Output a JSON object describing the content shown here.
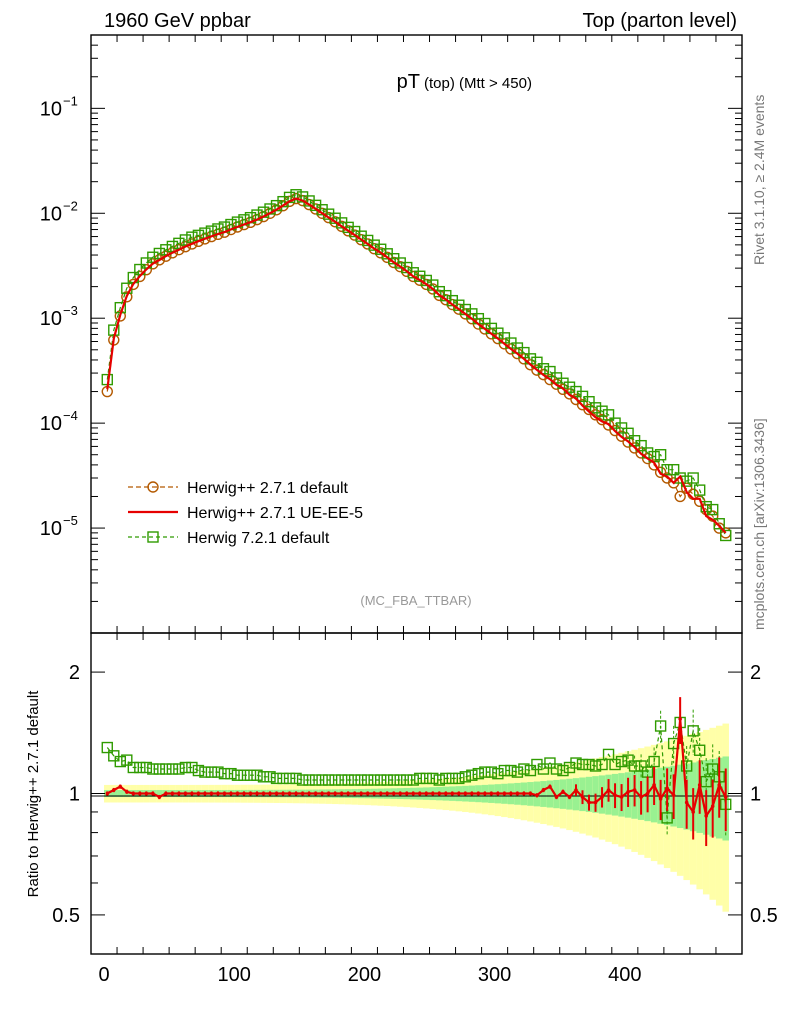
{
  "header": {
    "left": "1960 GeV ppbar",
    "right": "Top (parton level)"
  },
  "side_labels": {
    "rivet": "Rivet 3.1.10, ≥ 2.4M events",
    "mcplots": "mcplots.cern.ch [arXiv:1306.3436]"
  },
  "chart_data": [
    {
      "type": "line",
      "panel": "main",
      "title_main": "pT",
      "title_sub": "(top) (Mtt > 450)",
      "watermark": "(MC_FBA_TTBAR)",
      "yscale": "log",
      "ylim": [
        1e-06,
        0.5
      ],
      "xlim": [
        -10,
        490
      ],
      "y_ticks": [
        {
          "value": 0.1,
          "base": "10",
          "exp": "−1"
        },
        {
          "value": 0.01,
          "base": "10",
          "exp": "−2"
        },
        {
          "value": 0.001,
          "base": "10",
          "exp": "−3"
        },
        {
          "value": 0.0001,
          "base": "10",
          "exp": "−4"
        },
        {
          "value": 1e-05,
          "base": "10",
          "exp": "−5"
        }
      ],
      "legend_position": "bottom-left",
      "x": [
        2.5,
        7.5,
        12.5,
        17.5,
        22.5,
        27.5,
        32.5,
        37.5,
        42.5,
        47.5,
        52.5,
        57.5,
        62.5,
        67.5,
        72.5,
        77.5,
        82.5,
        87.5,
        92.5,
        97.5,
        102.5,
        107.5,
        112.5,
        117.5,
        122.5,
        127.5,
        132.5,
        137.5,
        142.5,
        147.5,
        152.5,
        157.5,
        162.5,
        167.5,
        172.5,
        177.5,
        182.5,
        187.5,
        192.5,
        197.5,
        202.5,
        207.5,
        212.5,
        217.5,
        222.5,
        227.5,
        232.5,
        237.5,
        242.5,
        247.5,
        252.5,
        257.5,
        262.5,
        267.5,
        272.5,
        277.5,
        282.5,
        287.5,
        292.5,
        297.5,
        302.5,
        307.5,
        312.5,
        317.5,
        322.5,
        327.5,
        332.5,
        337.5,
        342.5,
        347.5,
        352.5,
        357.5,
        362.5,
        367.5,
        372.5,
        377.5,
        382.5,
        387.5,
        392.5,
        397.5,
        402.5,
        407.5,
        412.5,
        417.5,
        422.5,
        427.5,
        432.5,
        437.5,
        442.5,
        447.5,
        452.5,
        457.5,
        462.5,
        467.5,
        472.5,
        477.5
      ],
      "series": [
        {
          "name": "Herwig++ 2.7.1 default",
          "color": "#b35900",
          "marker": "circle-open",
          "dash": "5,3",
          "values": [
            0.0002,
            0.00062,
            0.00105,
            0.0016,
            0.0021,
            0.0025,
            0.0029,
            0.0033,
            0.0036,
            0.0039,
            0.0042,
            0.0045,
            0.0048,
            0.0051,
            0.0054,
            0.0057,
            0.006,
            0.0063,
            0.0066,
            0.007,
            0.0074,
            0.0078,
            0.0082,
            0.0087,
            0.0093,
            0.01,
            0.0108,
            0.0118,
            0.013,
            0.0138,
            0.0132,
            0.0121,
            0.011,
            0.01,
            0.0091,
            0.0083,
            0.0075,
            0.0068,
            0.0062,
            0.0056,
            0.0051,
            0.0046,
            0.0042,
            0.0038,
            0.0034,
            0.0031,
            0.0028,
            0.0025,
            0.0023,
            0.0021,
            0.0019,
            0.00165,
            0.0015,
            0.00135,
            0.00122,
            0.0011,
            0.00099,
            0.00088,
            0.00079,
            0.00071,
            0.00064,
            0.00057,
            0.00051,
            0.00046,
            0.00041,
            0.00036,
            0.00032,
            0.00029,
            0.00026,
            0.000235,
            0.00021,
            0.00019,
            0.000168,
            0.00015,
            0.000135,
            0.00012,
            0.000108,
            9.6e-05,
            8.5e-05,
            7.5e-05,
            6.6e-05,
            5.8e-05,
            5.2e-05,
            4.6e-05,
            4e-05,
            3.4e-05,
            3e-05,
            2.7e-05,
            2e-05,
            2.4e-05,
            2.1e-05,
            1.8e-05,
            1.5e-05,
            1.3e-05,
            1e-05,
            9e-06
          ]
        },
        {
          "name": "Herwig++ 2.7.1 UE-EE-5",
          "color": "#e60000",
          "marker": "none",
          "dash": "",
          "values": [
            0.00021,
            0.00064,
            0.00108,
            0.00163,
            0.00212,
            0.00252,
            0.00292,
            0.00331,
            0.00359,
            0.00391,
            0.00421,
            0.00449,
            0.00482,
            0.00512,
            0.00542,
            0.00572,
            0.00602,
            0.00633,
            0.00661,
            0.00702,
            0.00742,
            0.00782,
            0.00822,
            0.00871,
            0.00932,
            0.01002,
            0.01082,
            0.01183,
            0.01302,
            0.01382,
            0.01322,
            0.01212,
            0.01102,
            0.01002,
            0.00912,
            0.00832,
            0.00752,
            0.00682,
            0.00621,
            0.00562,
            0.00511,
            0.00461,
            0.00421,
            0.00381,
            0.00341,
            0.00311,
            0.00281,
            0.00251,
            0.00231,
            0.00211,
            0.0019,
            0.00166,
            0.00151,
            0.00135,
            0.00122,
            0.0011,
            0.00099,
            0.00088,
            0.00079,
            0.00071,
            0.00064,
            0.00057,
            0.00051,
            0.00046,
            0.00041,
            0.000362,
            0.000322,
            0.000288,
            0.000262,
            0.000232,
            0.000215,
            0.000186,
            0.000172,
            0.000147,
            0.000129,
            0.000114,
            0.000104,
            9.8e-05,
            8.4e-05,
            7.4e-05,
            6.7e-05,
            5.9e-05,
            5.1e-05,
            4.6e-05,
            4.2e-05,
            3.3e-05,
            3.1e-05,
            2.7e-05,
            3.1e-05,
            2.2e-05,
            1.9e-05,
            1.9e-05,
            1.3e-05,
            1.2e-05,
            1.05e-05,
            9e-06
          ]
        },
        {
          "name": "Herwig 7.2.1 default",
          "color": "#2f9b00",
          "marker": "square-open",
          "dash": "4,3",
          "values": [
            0.00026,
            0.00077,
            0.00126,
            0.00193,
            0.00244,
            0.00291,
            0.00336,
            0.00381,
            0.00414,
            0.00449,
            0.00483,
            0.00517,
            0.00557,
            0.00592,
            0.00616,
            0.00647,
            0.00676,
            0.00709,
            0.00739,
            0.00781,
            0.00824,
            0.00866,
            0.00908,
            0.00962,
            0.01024,
            0.01099,
            0.01182,
            0.0129,
            0.01417,
            0.01502,
            0.01432,
            0.01311,
            0.0119,
            0.01081,
            0.00981,
            0.00897,
            0.0081,
            0.00734,
            0.0067,
            0.00605,
            0.00551,
            0.00497,
            0.00454,
            0.00411,
            0.00369,
            0.00336,
            0.00304,
            0.00271,
            0.00251,
            0.00229,
            0.00207,
            0.00179,
            0.00164,
            0.00147,
            0.00133,
            0.00121,
            0.0011,
            0.00099,
            0.00089,
            0.0008,
            0.00072,
            0.00065,
            0.00058,
            0.00052,
            0.00047,
            0.00041,
            0.00038,
            0.00033,
            0.00031,
            0.00027,
            0.00024,
            0.00022,
            0.0002,
            0.00018,
            0.00016,
            0.00014,
            0.00013,
            0.00012,
            0.0001,
            9e-05,
            8e-05,
            6.8e-05,
            6.1e-05,
            5.2e-05,
            4.8e-05,
            5e-05,
            3.6e-05,
            3.6e-05,
            3e-05,
            2.8e-05,
            3e-05,
            2.3e-05,
            1.6e-05,
            1.5e-05,
            1.1e-05,
            8.5e-06
          ]
        }
      ]
    },
    {
      "type": "line",
      "panel": "ratio",
      "ylabel": "Ratio to Herwig++ 2.7.1 default",
      "yscale": "log",
      "ylim": [
        0.4,
        2.5
      ],
      "xlim": [
        -10,
        490
      ],
      "x_ticks": [
        0,
        100,
        200,
        300,
        400
      ],
      "y_ticks": [
        {
          "value": 0.5,
          "label": "0.5"
        },
        {
          "value": 1,
          "label": "1"
        },
        {
          "value": 2,
          "label": "2"
        }
      ],
      "series": [
        {
          "name": "Herwig++ 2.7.1 UE-EE-5",
          "values": [
            1.0,
            1.02,
            1.04,
            1.01,
            1.0,
            1.0,
            1.0,
            1.0,
            0.98,
            1.0,
            1.0,
            1.0,
            1.0,
            1.0,
            1.0,
            1.0,
            1.0,
            1.0,
            1.0,
            1.0,
            1.0,
            1.0,
            1.0,
            1.0,
            1.0,
            1.0,
            1.0,
            1.0,
            1.0,
            1.0,
            1.0,
            1.0,
            1.0,
            1.0,
            1.0,
            1.0,
            1.0,
            1.0,
            1.0,
            1.0,
            1.0,
            1.0,
            1.0,
            1.0,
            1.0,
            1.0,
            1.0,
            1.0,
            1.0,
            1.0,
            1.0,
            1.0,
            1.0,
            1.0,
            1.0,
            1.0,
            1.0,
            1.0,
            1.0,
            1.0,
            1.0,
            1.0,
            1.0,
            1.0,
            1.0,
            1.0,
            0.99,
            1.02,
            1.04,
            0.98,
            1.01,
            0.98,
            1.02,
            0.98,
            0.95,
            0.95,
            0.98,
            1.02,
            0.99,
            0.98,
            1.01,
            1.02,
            0.98,
            1.0,
            1.05,
            0.97,
            1.03,
            0.99,
            1.53,
            0.95,
            0.9,
            1.05,
            0.88,
            0.93,
            1.05,
            0.98
          ]
        },
        {
          "name": "Herwig 7.2.1 default",
          "values": [
            1.3,
            1.24,
            1.2,
            1.21,
            1.16,
            1.16,
            1.16,
            1.15,
            1.15,
            1.15,
            1.15,
            1.15,
            1.16,
            1.16,
            1.14,
            1.13,
            1.13,
            1.13,
            1.12,
            1.12,
            1.11,
            1.11,
            1.11,
            1.11,
            1.1,
            1.1,
            1.09,
            1.09,
            1.09,
            1.09,
            1.08,
            1.08,
            1.08,
            1.08,
            1.08,
            1.08,
            1.08,
            1.08,
            1.08,
            1.08,
            1.08,
            1.08,
            1.08,
            1.08,
            1.08,
            1.08,
            1.08,
            1.08,
            1.09,
            1.09,
            1.09,
            1.08,
            1.09,
            1.09,
            1.09,
            1.1,
            1.11,
            1.12,
            1.13,
            1.13,
            1.12,
            1.14,
            1.14,
            1.13,
            1.15,
            1.14,
            1.18,
            1.15,
            1.19,
            1.15,
            1.14,
            1.16,
            1.19,
            1.18,
            1.18,
            1.17,
            1.18,
            1.25,
            1.18,
            1.2,
            1.21,
            1.17,
            1.17,
            1.13,
            1.2,
            1.47,
            0.87,
            1.33,
            1.5,
            1.17,
            1.43,
            1.28,
            1.07,
            1.15,
            1.1,
            0.94
          ]
        }
      ]
    }
  ]
}
